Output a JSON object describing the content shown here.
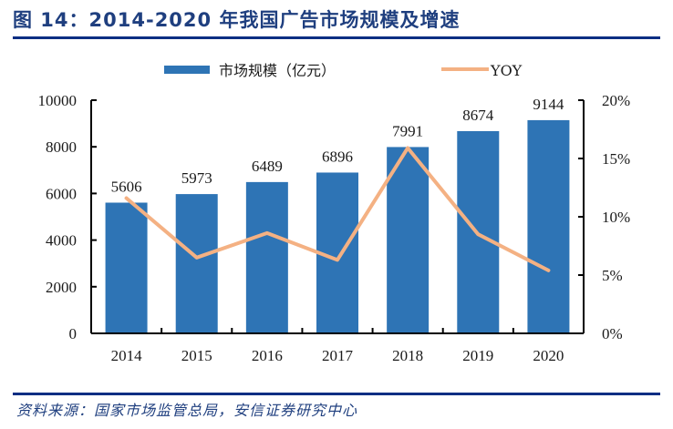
{
  "header": {
    "title": "图 14：2014-2020 年我国广告市场规模及增速"
  },
  "footer": {
    "source": "资料来源：国家市场监管总局，安信证券研究中心"
  },
  "colors": {
    "bar": "#2e74b5",
    "line": "#f4b183",
    "title": "#1f3f7f",
    "rule": "#0b2e83"
  },
  "chart_data": {
    "type": "bar",
    "title": "2014-2020 年我国广告市场规模及增速",
    "categories": [
      "2014",
      "2015",
      "2016",
      "2017",
      "2018",
      "2019",
      "2020"
    ],
    "series": [
      {
        "name": "市场规模（亿元）",
        "type": "bar",
        "axis": "left",
        "values": [
          5606,
          5973,
          6489,
          6896,
          7991,
          8674,
          9144
        ],
        "data_labels": [
          "5606",
          "5973",
          "6489",
          "6896",
          "7991",
          "8674",
          "9144"
        ]
      },
      {
        "name": "YOY",
        "type": "line",
        "axis": "right",
        "values": [
          11.6,
          6.5,
          8.6,
          6.3,
          15.9,
          8.5,
          5.4
        ]
      }
    ],
    "left_axis": {
      "ylim": [
        0,
        10000
      ],
      "ticks": [
        "0",
        "2000",
        "4000",
        "6000",
        "8000",
        "10000"
      ],
      "tick_values": [
        0,
        2000,
        4000,
        6000,
        8000,
        10000
      ]
    },
    "right_axis": {
      "ylim": [
        0,
        20
      ],
      "ticks": [
        "0%",
        "5%",
        "10%",
        "15%",
        "20%"
      ],
      "tick_values": [
        0,
        5,
        10,
        15,
        20
      ]
    },
    "xlabel": "",
    "ylabel": "",
    "grid": false,
    "legend": {
      "position": "top",
      "entries": [
        "市场规模（亿元）",
        "YOY"
      ]
    }
  }
}
